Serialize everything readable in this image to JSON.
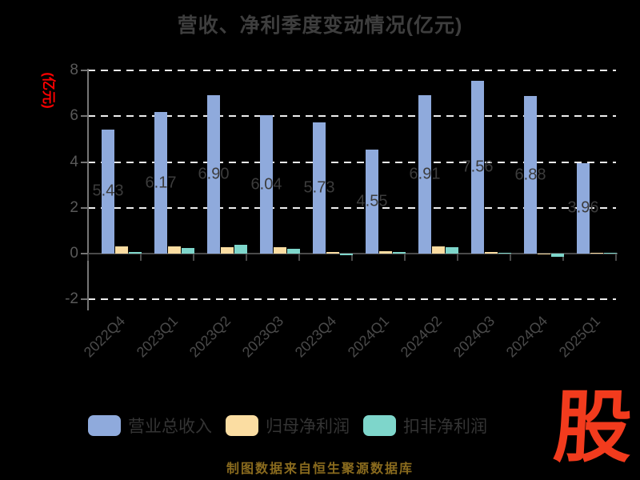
{
  "title": "营收、净利季度变动情况(亿元)",
  "caption": "制图数据来自恒生聚源数据库",
  "watermark": "股",
  "colors": {
    "background": "#000000",
    "title_text": "#3E3E3E",
    "axis_text": "#595959",
    "grid": "#EDEDED",
    "y_unit_label": "#FF0000",
    "caption_text": "#8A6B1E",
    "watermark_red": "#F23B1D",
    "revenue_bar": "#8FAADC",
    "net_profit_bar": "#FBDDA2",
    "deducted_profit_bar": "#7ED6CB"
  },
  "chart_data": {
    "type": "bar",
    "title": "营收、净利季度变动情况(亿元)",
    "ylabel": "(亿元)",
    "categories": [
      "2022Q4",
      "2023Q1",
      "2023Q2",
      "2023Q3",
      "2023Q4",
      "2024Q1",
      "2024Q2",
      "2024Q3",
      "2024Q4",
      "2025Q1"
    ],
    "series": [
      {
        "name": "营业总收入",
        "color": "#8FAADC",
        "values": [
          5.43,
          6.17,
          6.9,
          6.04,
          5.73,
          4.55,
          6.91,
          7.56,
          6.88,
          3.96
        ],
        "data_labels": true
      },
      {
        "name": "归母净利润",
        "color": "#FBDDA2",
        "values": [
          0.31,
          0.31,
          0.29,
          0.29,
          0.06,
          0.09,
          0.31,
          0.07,
          -0.03,
          0.05
        ],
        "data_labels": false
      },
      {
        "name": "扣非净利润",
        "color": "#7ED6CB",
        "values": [
          0.08,
          0.26,
          0.37,
          0.2,
          -0.06,
          0.07,
          0.28,
          0.05,
          -0.13,
          0.03
        ],
        "data_labels": false
      }
    ],
    "y_ticks": [
      8,
      6,
      4,
      2,
      0,
      -2
    ],
    "ylim": [
      -2,
      8
    ],
    "grid": "horizontal-dashed",
    "legend_position": "bottom"
  }
}
